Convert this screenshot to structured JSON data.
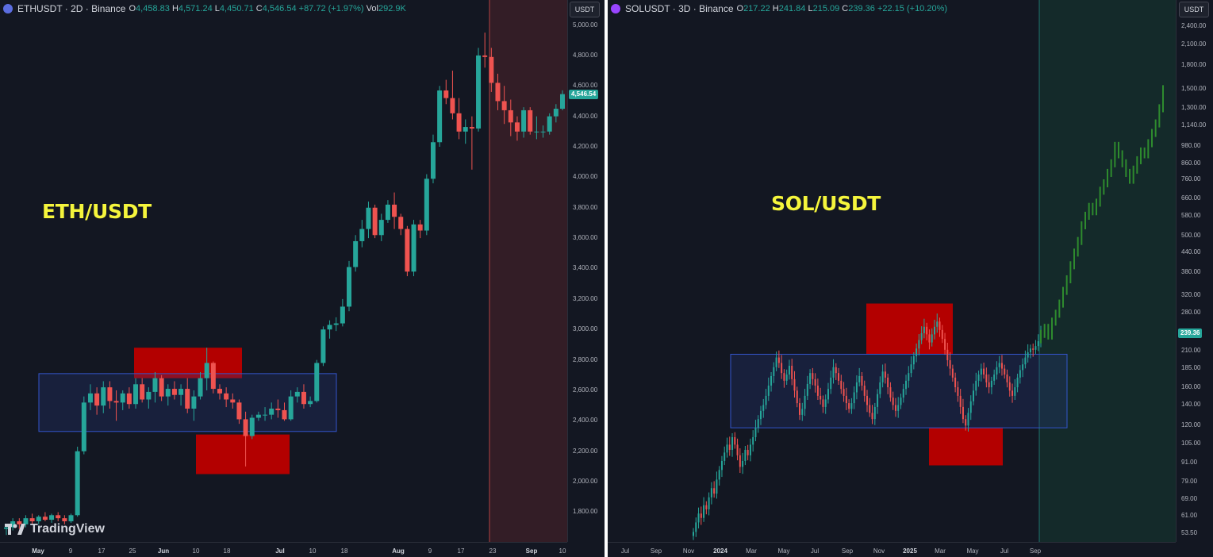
{
  "colors": {
    "up": "#26a69a",
    "down": "#ef5350",
    "forecast": "#2e8b2e",
    "box_red": "#b30000",
    "range_box": "#3355cc",
    "label": "#f5f53c"
  },
  "left": {
    "header": {
      "symbol": "ETHUSDT · 2D · Binance",
      "o": "4,458.83",
      "h": "4,571.24",
      "l": "4,450.71",
      "c": "4,546.54",
      "change": "+87.72 (+1.97%)",
      "vol_label": "Vol",
      "vol": "292.9K"
    },
    "currency_button": "USDT",
    "pair_label": "ETH/USDT",
    "last_price": "4,546.54",
    "logo": "TradingView",
    "price_ticks": [
      "5,000.00",
      "4,800.00",
      "4,600.00",
      "4,400.00",
      "4,200.00",
      "4,000.00",
      "3,800.00",
      "3,600.00",
      "3,400.00",
      "3,200.00",
      "3,000.00",
      "2,800.00",
      "2,600.00",
      "2,400.00",
      "2,200.00",
      "2,000.00",
      "1,800.00"
    ],
    "time_ticks": [
      {
        "label": "May",
        "bold": true
      },
      {
        "label": "9"
      },
      {
        "label": "17"
      },
      {
        "label": "25"
      },
      {
        "label": "Jun",
        "bold": true
      },
      {
        "label": "10"
      },
      {
        "label": "18"
      },
      {
        "label": "Jul",
        "bold": true
      },
      {
        "label": "10"
      },
      {
        "label": "18"
      },
      {
        "label": "Aug",
        "bold": true
      },
      {
        "label": "9"
      },
      {
        "label": "17"
      },
      {
        "label": "23"
      },
      {
        "label": "Sep",
        "bold": true
      },
      {
        "label": "10"
      }
    ],
    "chart_data": {
      "type": "candlestick",
      "series": [
        {
          "values": [
            [
              1690,
              1720,
              1650,
              1700
            ],
            [
              1700,
              1760,
              1680,
              1740
            ],
            [
              1740,
              1760,
              1690,
              1720
            ],
            [
              1720,
              1780,
              1700,
              1760
            ],
            [
              1760,
              1790,
              1720,
              1740
            ],
            [
              1740,
              1780,
              1720,
              1770
            ],
            [
              1770,
              1800,
              1740,
              1750
            ],
            [
              1750,
              1790,
              1730,
              1780
            ],
            [
              1780,
              1800,
              1740,
              1760
            ],
            [
              1760,
              1780,
              1720,
              1740
            ],
            [
              1740,
              1790,
              1730,
              1780
            ],
            [
              1780,
              2230,
              1770,
              2200
            ],
            [
              2200,
              2560,
              2180,
              2520
            ],
            [
              2520,
              2640,
              2470,
              2580
            ],
            [
              2580,
              2620,
              2440,
              2500
            ],
            [
              2500,
              2660,
              2450,
              2620
            ],
            [
              2620,
              2660,
              2480,
              2530
            ],
            [
              2530,
              2600,
              2400,
              2520
            ],
            [
              2520,
              2600,
              2470,
              2580
            ],
            [
              2580,
              2620,
              2480,
              2510
            ],
            [
              2510,
              2680,
              2480,
              2640
            ],
            [
              2640,
              2680,
              2520,
              2540
            ],
            [
              2540,
              2620,
              2480,
              2590
            ],
            [
              2590,
              2720,
              2520,
              2680
            ],
            [
              2680,
              2700,
              2530,
              2560
            ],
            [
              2560,
              2640,
              2500,
              2610
            ],
            [
              2610,
              2660,
              2540,
              2570
            ],
            [
              2570,
              2640,
              2500,
              2610
            ],
            [
              2610,
              2680,
              2450,
              2480
            ],
            [
              2480,
              2600,
              2400,
              2560
            ],
            [
              2560,
              2720,
              2540,
              2680
            ],
            [
              2680,
              2880,
              2600,
              2780
            ],
            [
              2780,
              2790,
              2580,
              2610
            ],
            [
              2610,
              2640,
              2540,
              2580
            ],
            [
              2580,
              2620,
              2490,
              2540
            ],
            [
              2540,
              2580,
              2480,
              2520
            ],
            [
              2520,
              2540,
              2380,
              2410
            ],
            [
              2410,
              2460,
              2100,
              2300
            ],
            [
              2300,
              2440,
              2280,
              2420
            ],
            [
              2420,
              2460,
              2400,
              2440
            ],
            [
              2440,
              2490,
              2400,
              2440
            ],
            [
              2440,
              2520,
              2410,
              2480
            ],
            [
              2480,
              2540,
              2420,
              2470
            ],
            [
              2470,
              2520,
              2400,
              2410
            ],
            [
              2410,
              2600,
              2400,
              2560
            ],
            [
              2560,
              2620,
              2520,
              2590
            ],
            [
              2590,
              2640,
              2480,
              2510
            ],
            [
              2510,
              2560,
              2490,
              2530
            ],
            [
              2530,
              2800,
              2520,
              2780
            ],
            [
              2780,
              3020,
              2760,
              3000
            ],
            [
              3000,
              3060,
              2940,
              3030
            ],
            [
              3030,
              3080,
              2990,
              3040
            ],
            [
              3040,
              3200,
              3020,
              3150
            ],
            [
              3150,
              3450,
              3120,
              3410
            ],
            [
              3410,
              3620,
              3380,
              3580
            ],
            [
              3580,
              3720,
              3540,
              3660
            ],
            [
              3660,
              3840,
              3600,
              3800
            ],
            [
              3800,
              3820,
              3600,
              3620
            ],
            [
              3620,
              3760,
              3580,
              3720
            ],
            [
              3720,
              3850,
              3700,
              3820
            ],
            [
              3820,
              3900,
              3660,
              3740
            ],
            [
              3740,
              3760,
              3620,
              3660
            ],
            [
              3660,
              3680,
              3350,
              3380
            ],
            [
              3380,
              3720,
              3350,
              3690
            ],
            [
              3690,
              3720,
              3600,
              3650
            ],
            [
              3650,
              4020,
              3620,
              3990
            ],
            [
              3990,
              4280,
              3960,
              4230
            ],
            [
              4230,
              4600,
              4200,
              4570
            ],
            [
              4570,
              4640,
              4480,
              4520
            ],
            [
              4520,
              4700,
              4380,
              4420
            ],
            [
              4420,
              4520,
              4250,
              4300
            ],
            [
              4300,
              4380,
              4220,
              4330
            ],
            [
              4330,
              4400,
              4050,
              4320
            ],
            [
              4320,
              4850,
              4300,
              4800
            ],
            [
              4800,
              4950,
              4720,
              4790
            ],
            [
              4790,
              4850,
              4560,
              4620
            ],
            [
              4620,
              4680,
              4440,
              4500
            ],
            [
              4500,
              4600,
              4350,
              4440
            ],
            [
              4440,
              4510,
              4270,
              4360
            ],
            [
              4360,
              4400,
              4240,
              4300
            ],
            [
              4300,
              4460,
              4260,
              4440
            ],
            [
              4440,
              4460,
              4280,
              4300
            ],
            [
              4300,
              4400,
              4250,
              4300
            ],
            [
              4300,
              4340,
              4260,
              4300
            ],
            [
              4300,
              4420,
              4280,
              4400
            ],
            [
              4400,
              4480,
              4360,
              4450
            ],
            [
              4450,
              4571,
              4440,
              4546
            ]
          ]
        }
      ],
      "ylim": [
        1620,
        5060
      ],
      "grid": false
    }
  },
  "right": {
    "header": {
      "symbol": "SOLUSDT · 3D · Binance",
      "o": "217.22",
      "h": "241.84",
      "l": "215.09",
      "c": "239.36",
      "change": "+22.15 (+10.20%)"
    },
    "currency_button": "USDT",
    "pair_label": "SOL/USDT",
    "last_price": "239.36",
    "price_ticks": [
      "2,400.00",
      "2,100.00",
      "1,800.00",
      "1,500.00",
      "1,300.00",
      "1,140.00",
      "980.00",
      "860.00",
      "760.00",
      "660.00",
      "580.00",
      "500.00",
      "440.00",
      "380.00",
      "320.00",
      "280.00",
      "210.00",
      "185.00",
      "160.00",
      "140.00",
      "120.00",
      "105.00",
      "91.00",
      "79.00",
      "69.00",
      "61.00",
      "53.50"
    ],
    "time_ticks": [
      {
        "label": "Jul"
      },
      {
        "label": "Sep"
      },
      {
        "label": "Nov"
      },
      {
        "label": "2024",
        "bold": true
      },
      {
        "label": "Mar"
      },
      {
        "label": "May"
      },
      {
        "label": "Jul"
      },
      {
        "label": "Sep"
      },
      {
        "label": "Nov"
      },
      {
        "label": "2025",
        "bold": true
      },
      {
        "label": "Mar"
      },
      {
        "label": "May"
      },
      {
        "label": "Jul"
      },
      {
        "label": "Sep"
      }
    ],
    "chart_data": {
      "type": "candlestick",
      "scale": "log",
      "ylim": [
        51,
        2600
      ],
      "grid": false,
      "history_closes": [
        54,
        58,
        62,
        60,
        66,
        64,
        70,
        75,
        72,
        80,
        86,
        92,
        98,
        104,
        100,
        110,
        104,
        96,
        88,
        92,
        100,
        96,
        104,
        110,
        118,
        126,
        134,
        140,
        150,
        162,
        174,
        186,
        200,
        192,
        178,
        168,
        176,
        188,
        170,
        156,
        142,
        130,
        136,
        150,
        164,
        178,
        170,
        162,
        150,
        146,
        138,
        146,
        158,
        172,
        186,
        178,
        168,
        158,
        150,
        142,
        136,
        142,
        154,
        166,
        174,
        162,
        150,
        140,
        132,
        126,
        138,
        152,
        166,
        180,
        172,
        160,
        148,
        140,
        134,
        140,
        148,
        158,
        168,
        178,
        190,
        202,
        214,
        228,
        240,
        252,
        238,
        224,
        238,
        252,
        262,
        246,
        230,
        212,
        196,
        184,
        172,
        160,
        150,
        138,
        126,
        120,
        132,
        144,
        156,
        168,
        176,
        184,
        176,
        166,
        160,
        168,
        176,
        186,
        192,
        184,
        176,
        166,
        156,
        150,
        160,
        172,
        182,
        190,
        200,
        208,
        214,
        212,
        218,
        226,
        239
      ]
    }
  }
}
